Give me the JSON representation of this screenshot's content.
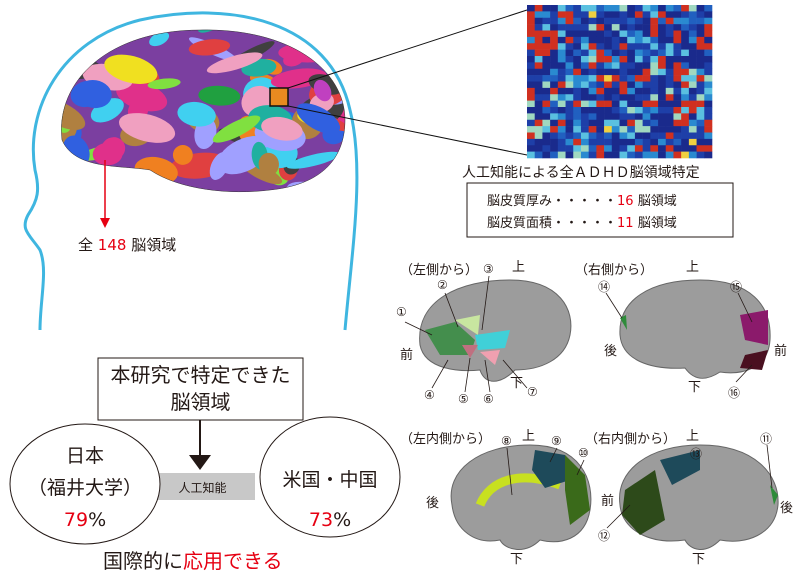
{
  "left_panel": {
    "total_prefix": "全",
    "total_count": "148",
    "total_suffix": "脳領域"
  },
  "ai_result": {
    "title": "人工知能による全ＡＤＨＤ脳領域特定",
    "rows": [
      {
        "label": "脳皮質厚み・・・・・",
        "count": "16",
        "unit": "脳領域"
      },
      {
        "label": "脳皮質面積・・・・・",
        "count": "11",
        "unit": "脳領域"
      }
    ]
  },
  "views": {
    "left_lateral": "（左側から）",
    "right_lateral": "（右側から）",
    "left_medial": "（左内側から）",
    "right_medial": "（右内側から）",
    "up": "上",
    "down": "下",
    "front": "前",
    "back": "後"
  },
  "region_markers": [
    "①",
    "②",
    "③",
    "④",
    "⑤",
    "⑥",
    "⑦",
    "⑧",
    "⑨",
    "⑩",
    "⑪",
    "⑫",
    "⑬",
    "⑭",
    "⑮",
    "⑯"
  ],
  "bottom": {
    "box_line1": "本研究で特定できた",
    "box_line2": "脳領域",
    "ai_label": "人工知能",
    "japan_line1": "日本",
    "japan_line2": "（福井大学）",
    "japan_pct": "79",
    "us_china": "米国・中国",
    "us_china_pct": "73",
    "pct_sign": "%",
    "conclusion_prefix": "国際的に",
    "conclusion_highlight": "応用できる"
  },
  "colors": {
    "accent_red": "#e60012",
    "head_outline": "#3fb6e0",
    "gray_bar": "#c8c8c8"
  }
}
